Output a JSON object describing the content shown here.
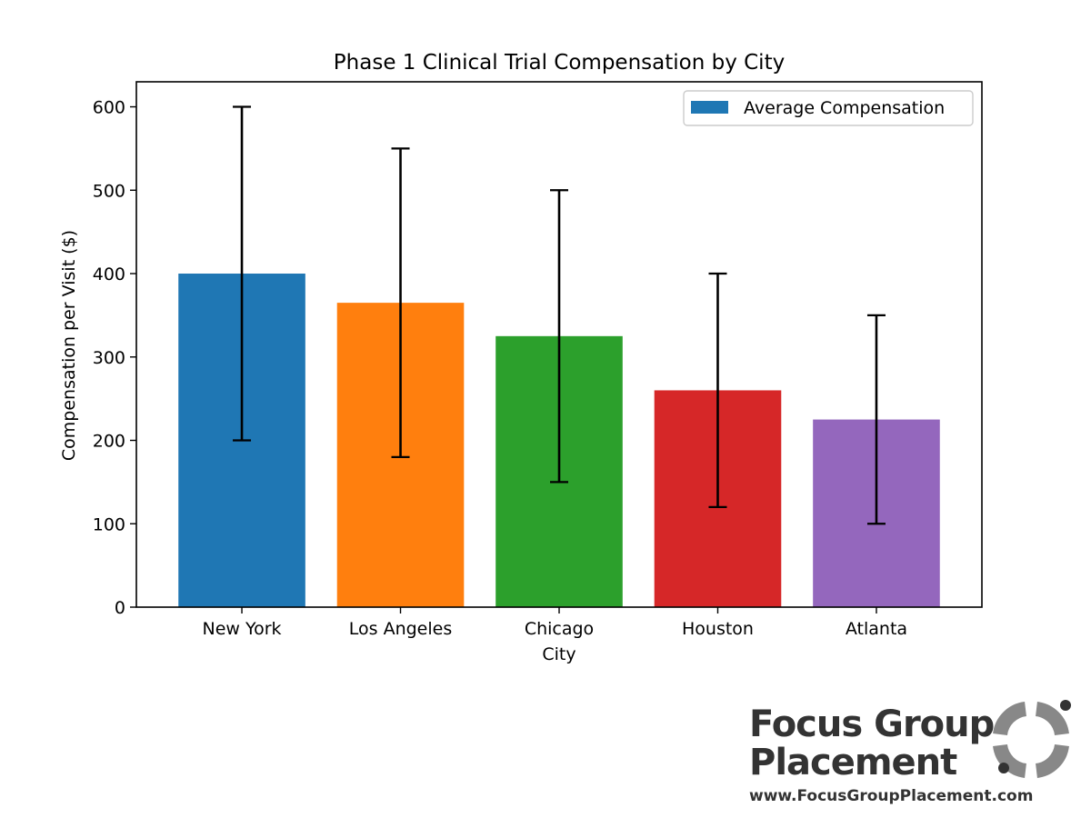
{
  "chart_data": {
    "type": "bar",
    "title": "Phase 1 Clinical Trial Compensation by City",
    "xlabel": "City",
    "ylabel": "Compensation per Visit ($)",
    "categories": [
      "New York",
      "Los Angeles",
      "Chicago",
      "Houston",
      "Atlanta"
    ],
    "series": [
      {
        "name": "Average Compensation",
        "values": [
          400,
          365,
          325,
          260,
          225
        ],
        "error_low": [
          200,
          180,
          150,
          120,
          100
        ],
        "error_high": [
          600,
          550,
          500,
          400,
          350
        ]
      }
    ],
    "bar_colors": [
      "#1f77b4",
      "#ff7f0e",
      "#2ca02c",
      "#d62728",
      "#9467bd"
    ],
    "ylim": [
      0,
      630
    ],
    "yticks": [
      0,
      100,
      200,
      300,
      400,
      500,
      600
    ],
    "legend_position": "top-right",
    "grid": false
  },
  "branding": {
    "line1": "Focus Group",
    "line2": "Placement",
    "url": "www.FocusGroupPlacement.com",
    "logo_color": "#333333",
    "mark_color": "#888888"
  }
}
